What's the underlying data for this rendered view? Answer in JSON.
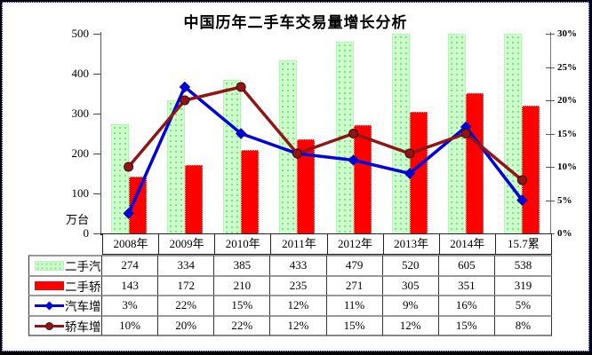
{
  "window": {
    "background": "#ffffff",
    "frame_border_color": "#000000",
    "selection_marquee_color": "#0000cc"
  },
  "chart_data": {
    "type": "combo-bar-line",
    "title": "中国历年二手车交易量增长分析",
    "categories": [
      "2008年",
      "2009年",
      "2010年",
      "2011年",
      "2012年",
      "2013年",
      "2014年",
      "15.7累"
    ],
    "series": [
      {
        "name": "二手汽车",
        "kind": "bar",
        "axis": "left",
        "color": "#ccffcc",
        "values": [
          274,
          334,
          385,
          433,
          479,
          520,
          605,
          538
        ]
      },
      {
        "name": "二手轿车",
        "kind": "bar",
        "axis": "left",
        "color": "#ff0000",
        "values": [
          143,
          172,
          210,
          235,
          271,
          305,
          351,
          319
        ]
      },
      {
        "name": "汽车增速",
        "kind": "line",
        "axis": "right",
        "color": "#0000dd",
        "marker": "diamond",
        "values": [
          "3%",
          "22%",
          "15%",
          "12%",
          "11%",
          "9%",
          "16%",
          "5%"
        ],
        "values_pct": [
          3,
          22,
          15,
          12,
          11,
          9,
          16,
          5
        ]
      },
      {
        "name": "轿车增速",
        "kind": "line",
        "axis": "right",
        "color": "#8e1616",
        "marker": "circle",
        "values": [
          "10%",
          "20%",
          "22%",
          "12%",
          "15%",
          "12%",
          "15%",
          "8%"
        ],
        "values_pct": [
          10,
          20,
          22,
          12,
          15,
          12,
          15,
          8
        ]
      }
    ],
    "left_axis": {
      "unit": "万台",
      "ticks": [
        500,
        400,
        300,
        200,
        100,
        0
      ],
      "min": 0,
      "max": 500
    },
    "right_axis": {
      "ticks": [
        "30%",
        "25%",
        "20%",
        "15%",
        "10%",
        "5%",
        "0%"
      ],
      "min": 0,
      "max": 30
    },
    "legend_position": "table-left-column",
    "grid": false,
    "bars_clipped_at_axis_max": true
  }
}
